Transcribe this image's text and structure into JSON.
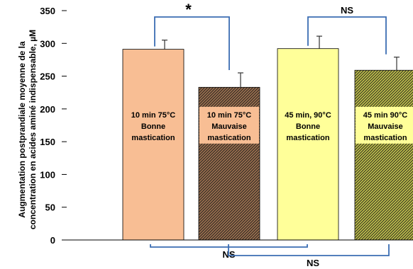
{
  "chart_data": {
    "type": "bar",
    "ylabel_line1": "Augmentation postprandiale moyenne de la",
    "ylabel_line2": "concentration en acides aminé indispensable, µM",
    "ylim": [
      0,
      350
    ],
    "yticks": [
      0,
      50,
      100,
      150,
      200,
      250,
      300,
      350
    ],
    "categories": [
      [
        "10 min 75°C",
        "Bonne",
        "mastication"
      ],
      [
        "10 min 75°C",
        "Mauvaise",
        "mastication"
      ],
      [
        "45 min, 90°C",
        "Bonne",
        "mastication"
      ],
      [
        "45 min 90°C",
        "Mauvaise",
        "mastication"
      ]
    ],
    "values": [
      291,
      233,
      292,
      259
    ],
    "errors": [
      14,
      22,
      19,
      20
    ],
    "bar_colors": [
      "#f8be94",
      "#9a6f4e",
      "#ffff99",
      "#bdbd4a"
    ],
    "hatched": [
      false,
      true,
      false,
      true
    ],
    "comparisons": [
      {
        "between": [
          0,
          1
        ],
        "label": "*",
        "position": "top"
      },
      {
        "between": [
          2,
          3
        ],
        "label": "NS",
        "position": "top"
      },
      {
        "between": [
          0,
          2
        ],
        "label": "NS",
        "position": "bottom"
      },
      {
        "between": [
          1,
          3
        ],
        "label": "NS",
        "position": "bottom"
      }
    ],
    "bracket_color": "#3b6db3",
    "grid": false,
    "legend": "none"
  }
}
